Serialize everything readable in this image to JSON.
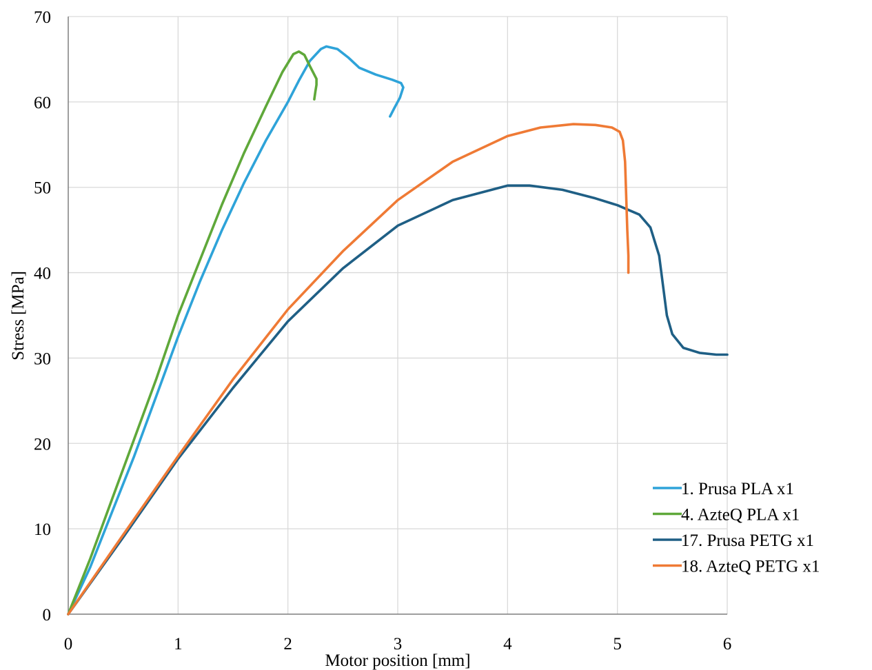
{
  "chart_data": {
    "type": "line",
    "title": "",
    "xlabel": "Motor position [mm]",
    "ylabel": "Stress [MPa]",
    "xlim": [
      0,
      6
    ],
    "ylim": [
      0,
      70
    ],
    "xticks": [
      "0",
      "1",
      "2",
      "3",
      "4",
      "5",
      "6"
    ],
    "yticks": [
      "0",
      "10",
      "20",
      "30",
      "40",
      "50",
      "60",
      "70"
    ],
    "grid": true,
    "legend_position": "bottom-right",
    "series": [
      {
        "name": "1. Prusa PLA x1",
        "color": "#2ea3d9",
        "points": [
          [
            0,
            0
          ],
          [
            0.2,
            5.5
          ],
          [
            0.4,
            12
          ],
          [
            0.6,
            18.5
          ],
          [
            0.8,
            25.5
          ],
          [
            1.0,
            32.5
          ],
          [
            1.2,
            39
          ],
          [
            1.4,
            45
          ],
          [
            1.6,
            50.5
          ],
          [
            1.8,
            55.5
          ],
          [
            2.0,
            60
          ],
          [
            2.1,
            62.5
          ],
          [
            2.2,
            64.8
          ],
          [
            2.3,
            66.2
          ],
          [
            2.35,
            66.5
          ],
          [
            2.45,
            66.2
          ],
          [
            2.55,
            65.2
          ],
          [
            2.65,
            64
          ],
          [
            2.8,
            63.2
          ],
          [
            2.95,
            62.6
          ],
          [
            3.03,
            62.2
          ],
          [
            3.05,
            61.7
          ],
          [
            3.02,
            60.5
          ],
          [
            2.97,
            59.3
          ],
          [
            2.93,
            58.3
          ]
        ]
      },
      {
        "name": "4. AzteQ PLA x1",
        "color": "#5fa83a",
        "points": [
          [
            0,
            0
          ],
          [
            0.2,
            6.5
          ],
          [
            0.4,
            13.5
          ],
          [
            0.6,
            20.5
          ],
          [
            0.8,
            27.5
          ],
          [
            1.0,
            35
          ],
          [
            1.2,
            41.5
          ],
          [
            1.4,
            48
          ],
          [
            1.6,
            54
          ],
          [
            1.8,
            59.5
          ],
          [
            1.95,
            63.5
          ],
          [
            2.05,
            65.6
          ],
          [
            2.1,
            65.9
          ],
          [
            2.15,
            65.5
          ],
          [
            2.2,
            64.2
          ],
          [
            2.24,
            63.2
          ],
          [
            2.26,
            62.7
          ],
          [
            2.26,
            62
          ],
          [
            2.25,
            61.2
          ],
          [
            2.24,
            60.3
          ]
        ]
      },
      {
        "name": "17. Prusa PETG x1",
        "color": "#1f5f85",
        "points": [
          [
            0,
            0
          ],
          [
            0.5,
            9
          ],
          [
            1.0,
            18.2
          ],
          [
            1.5,
            26.5
          ],
          [
            2.0,
            34.3
          ],
          [
            2.5,
            40.5
          ],
          [
            3.0,
            45.5
          ],
          [
            3.5,
            48.5
          ],
          [
            4.0,
            50.2
          ],
          [
            4.2,
            50.2
          ],
          [
            4.5,
            49.7
          ],
          [
            4.8,
            48.7
          ],
          [
            5.0,
            47.9
          ],
          [
            5.2,
            46.8
          ],
          [
            5.3,
            45.3
          ],
          [
            5.38,
            42
          ],
          [
            5.42,
            38
          ],
          [
            5.45,
            35
          ],
          [
            5.5,
            32.8
          ],
          [
            5.6,
            31.2
          ],
          [
            5.75,
            30.6
          ],
          [
            5.9,
            30.4
          ],
          [
            6.0,
            30.4
          ]
        ]
      },
      {
        "name": "18. AzteQ PETG x1",
        "color": "#ef7a35",
        "points": [
          [
            0,
            0
          ],
          [
            0.5,
            9.3
          ],
          [
            1.0,
            18.5
          ],
          [
            1.5,
            27.5
          ],
          [
            2.0,
            35.7
          ],
          [
            2.5,
            42.5
          ],
          [
            3.0,
            48.5
          ],
          [
            3.5,
            53
          ],
          [
            4.0,
            56
          ],
          [
            4.3,
            57
          ],
          [
            4.6,
            57.4
          ],
          [
            4.8,
            57.3
          ],
          [
            4.95,
            57
          ],
          [
            5.02,
            56.5
          ],
          [
            5.05,
            55.5
          ],
          [
            5.07,
            53
          ],
          [
            5.08,
            49
          ],
          [
            5.09,
            45
          ],
          [
            5.1,
            42
          ],
          [
            5.1,
            40
          ]
        ]
      }
    ]
  }
}
